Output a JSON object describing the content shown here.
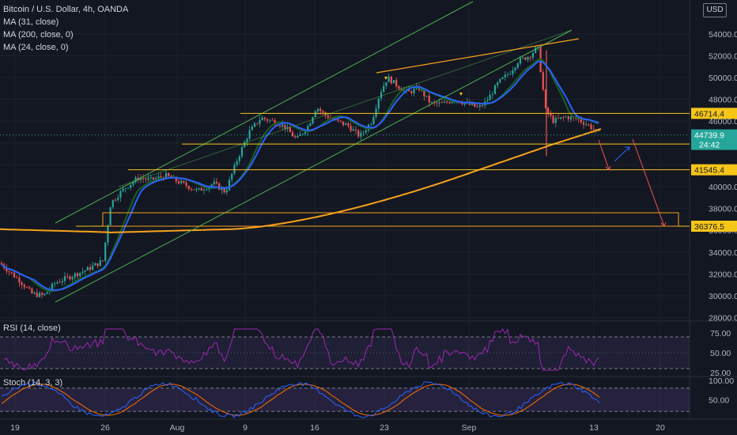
{
  "legend": {
    "title": "Bitcoin / U.S. Dollar, 4h, OANDA",
    "ma1": "MA (31, close)",
    "ma2": "MA (200, close, 0)",
    "ma3": "MA (24, close, 0)"
  },
  "rsi_label": "RSI (14, close)",
  "stoch_label": "Stoch (14, 3, 3)",
  "currency": "USD",
  "colors": {
    "bg": "#131722",
    "up": "#26a69a",
    "down": "#ef5350",
    "ma31": "#2962ff",
    "ma200": "#f7a21b",
    "ma24": "#1b5e20",
    "level": "#f5c518",
    "channel": "#4caf50",
    "trend": "#f7a21b",
    "rsi": "#9c27b0",
    "stoch_k": "#2962ff",
    "stoch_d": "#ff6d00"
  },
  "chart_data": {
    "type": "candlestick",
    "ylim": [
      28000,
      56000
    ],
    "yticks": [
      28000,
      30000,
      32000,
      34000,
      36000,
      38000,
      40000,
      42000,
      44000,
      46000,
      48000,
      50000,
      52000,
      54000
    ],
    "ytick_labels": [
      "28000.0",
      "30000.0",
      "32000.0",
      "34000.0",
      "36000.0",
      "38000.0",
      "40000.0",
      "",
      "",
      "46000.0",
      "48000.0",
      "50000.0",
      "52000.0",
      "54000.0"
    ],
    "xticks": [
      "19",
      "26",
      "Aug",
      "9",
      "16",
      "23",
      "Sep",
      "13",
      "20"
    ],
    "price_series_knots": [
      [
        0,
        33000
      ],
      [
        12,
        32200
      ],
      [
        25,
        31400
      ],
      [
        40,
        30200
      ],
      [
        55,
        30000
      ],
      [
        70,
        31200
      ],
      [
        90,
        31800
      ],
      [
        110,
        32400
      ],
      [
        130,
        33200
      ],
      [
        140,
        38500
      ],
      [
        150,
        39300
      ],
      [
        160,
        40000
      ],
      [
        175,
        40800
      ],
      [
        190,
        40600
      ],
      [
        210,
        41000
      ],
      [
        230,
        40300
      ],
      [
        250,
        39600
      ],
      [
        270,
        40300
      ],
      [
        285,
        39500
      ],
      [
        300,
        42500
      ],
      [
        315,
        45000
      ],
      [
        330,
        46300
      ],
      [
        345,
        46000
      ],
      [
        360,
        45500
      ],
      [
        375,
        44300
      ],
      [
        390,
        45600
      ],
      [
        400,
        47300
      ],
      [
        410,
        46600
      ],
      [
        425,
        46000
      ],
      [
        440,
        45600
      ],
      [
        455,
        44600
      ],
      [
        470,
        46000
      ],
      [
        480,
        48500
      ],
      [
        490,
        50000
      ],
      [
        500,
        49400
      ],
      [
        515,
        48600
      ],
      [
        530,
        49000
      ],
      [
        545,
        47600
      ],
      [
        560,
        47600
      ],
      [
        575,
        48000
      ],
      [
        590,
        47600
      ],
      [
        605,
        47200
      ],
      [
        615,
        47800
      ],
      [
        630,
        49500
      ],
      [
        645,
        50500
      ],
      [
        655,
        51500
      ],
      [
        670,
        52000
      ],
      [
        680,
        52800
      ],
      [
        690,
        47000
      ],
      [
        700,
        46000
      ],
      [
        715,
        46400
      ],
      [
        730,
        46200
      ],
      [
        745,
        45600
      ],
      [
        760,
        44700
      ]
    ],
    "price_levels": [
      {
        "value": 46714.4,
        "label": "46714.4"
      },
      {
        "value": 43905.2,
        "label": "43905.2"
      },
      {
        "value": 41545.4,
        "label": "41545.4"
      },
      {
        "value": 36376.5,
        "label": "36376.5"
      }
    ],
    "current_price": {
      "value": 44739.9,
      "label": "44739.9",
      "timer": "24:42"
    },
    "rsi": {
      "ylim": [
        20,
        90
      ],
      "ticks": [
        75,
        50,
        25
      ],
      "tick_labels": [
        "75.00",
        "50.00",
        "25.00"
      ],
      "bands": [
        70,
        30
      ]
    },
    "stoch": {
      "ylim": [
        0,
        110
      ],
      "ticks": [
        100,
        50
      ],
      "tick_labels": [
        "100.00",
        "50.00"
      ],
      "bands": [
        80,
        20
      ]
    }
  }
}
